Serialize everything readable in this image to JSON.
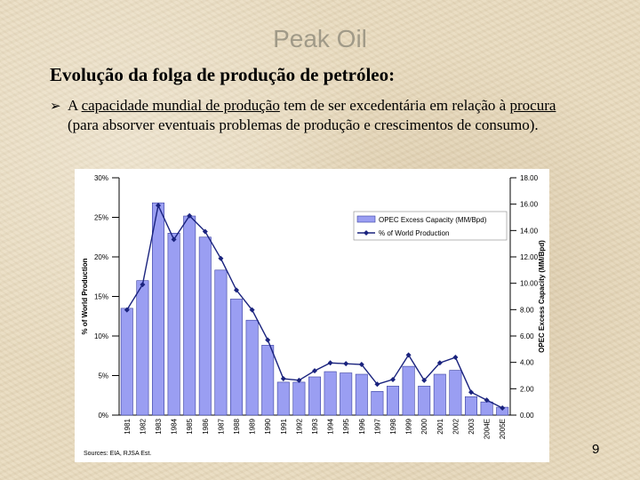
{
  "slide": {
    "title": "Peak Oil",
    "subtitle": "Evolução da folga de produção de petróleo:",
    "bullet": {
      "before": "A ",
      "u1": "capacidade mundial de produção",
      "mid": " tem de ser excedentária em relação à ",
      "u2": "procura",
      "after": " (para absorver eventuais problemas de produção e crescimentos de consumo)."
    },
    "page_number": "9",
    "source": "Sources: EIA, RJSA Est."
  },
  "chart_data": {
    "type": "bar",
    "categories": [
      "1981",
      "1982",
      "1983",
      "1984",
      "1985",
      "1986",
      "1987",
      "1988",
      "1989",
      "1990",
      "1991",
      "1992",
      "1993",
      "1994",
      "1995",
      "1996",
      "1997",
      "1998",
      "1999",
      "2000",
      "2001",
      "2002",
      "2003",
      "2004E",
      "2005E"
    ],
    "series": [
      {
        "name": "OPEC Excess Capacity (MM/Bpd)",
        "kind": "bar",
        "axis": "right",
        "values": [
          8.1,
          10.2,
          16.1,
          13.8,
          15.1,
          13.5,
          11.0,
          8.8,
          7.2,
          5.3,
          2.5,
          2.5,
          2.9,
          3.3,
          3.2,
          3.1,
          1.8,
          2.2,
          3.7,
          2.2,
          3.1,
          3.4,
          1.4,
          1.0,
          0.6
        ]
      },
      {
        "name": "% of World Production",
        "kind": "line",
        "axis": "left",
        "values": [
          13.3,
          16.5,
          26.5,
          22.2,
          25.2,
          23.2,
          19.8,
          15.8,
          13.3,
          9.5,
          4.6,
          4.4,
          5.6,
          6.6,
          6.5,
          6.4,
          3.9,
          4.5,
          7.6,
          4.4,
          6.6,
          7.3,
          2.9,
          1.9,
          0.9
        ]
      }
    ],
    "y_left": {
      "label": "% of World Production",
      "min": 0,
      "max": 30,
      "ticks": [
        "0%",
        "5%",
        "10%",
        "15%",
        "20%",
        "25%",
        "30%"
      ]
    },
    "y_right": {
      "label": "OPEC Excess Capacity (MM/Bpd)",
      "min": 0,
      "max": 18,
      "ticks": [
        "0.00",
        "2.00",
        "4.00",
        "6.00",
        "8.00",
        "10.00",
        "12.00",
        "14.00",
        "16.00",
        "18.00"
      ]
    },
    "legend_position": "top-right",
    "grid": false,
    "colors": {
      "bar_fill": "#9a9ef2",
      "bar_stroke": "#3a40a0",
      "line": "#1a237e"
    }
  }
}
